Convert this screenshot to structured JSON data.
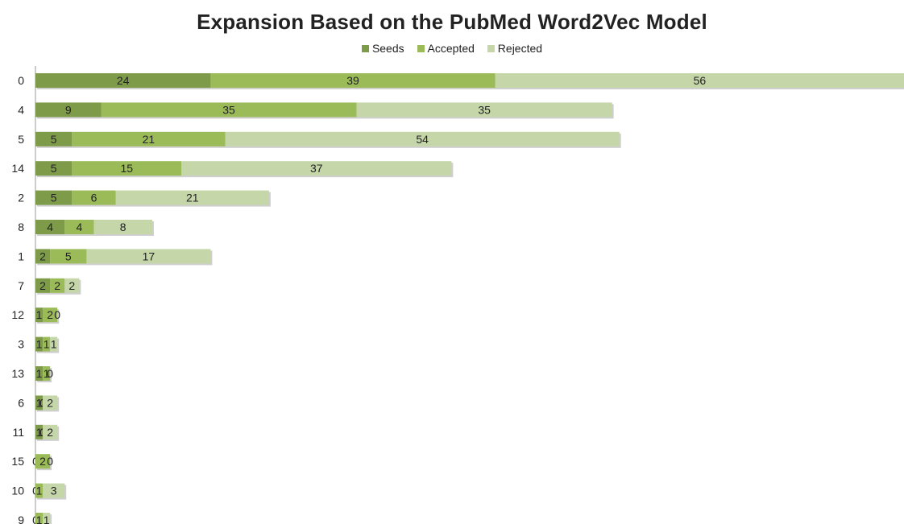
{
  "chart_data": {
    "type": "bar",
    "orientation": "horizontal",
    "stacked": true,
    "title": "Expansion Based on the PubMed Word2Vec Model",
    "xlabel": "",
    "ylabel": "",
    "categories": [
      "0",
      "4",
      "5",
      "14",
      "2",
      "8",
      "1",
      "7",
      "12",
      "3",
      "13",
      "6",
      "11",
      "15",
      "10",
      "9"
    ],
    "series": [
      {
        "name": "Seeds",
        "color": "#7e9b4a",
        "values": [
          24,
          9,
          5,
          5,
          5,
          4,
          2,
          2,
          1,
          1,
          1,
          1,
          1,
          0,
          0,
          0
        ]
      },
      {
        "name": "Accepted",
        "color": "#9bbb59",
        "values": [
          39,
          35,
          21,
          15,
          6,
          4,
          5,
          2,
          2,
          1,
          1,
          0,
          0,
          2,
          1,
          1
        ]
      },
      {
        "name": "Rejected",
        "color": "#c5d6a8",
        "values": [
          56,
          35,
          54,
          37,
          21,
          8,
          17,
          2,
          0,
          1,
          0,
          2,
          2,
          0,
          3,
          1
        ]
      }
    ],
    "xlim": [
      0,
      119
    ],
    "grid": false,
    "legend_position": "top"
  }
}
